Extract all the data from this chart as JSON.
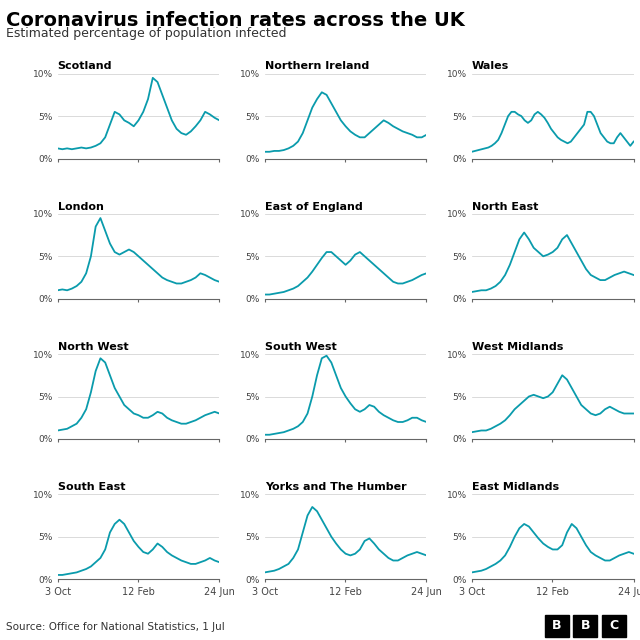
{
  "title": "Coronavirus infection rates across the UK",
  "subtitle": "Estimated percentage of population infected",
  "source": "Source: Office for National Statistics, 1 Jul",
  "line_color": "#0a9bac",
  "background_color": "#ffffff",
  "x_tick_labels": [
    "3 Oct",
    "12 Feb",
    "24 Jun"
  ],
  "y_max": 10,
  "regions": [
    "Scotland",
    "Northern Ireland",
    "Wales",
    "London",
    "East of England",
    "North East",
    "North West",
    "South West",
    "West Midlands",
    "South East",
    "Yorks and The Humber",
    "East Midlands"
  ],
  "data": {
    "Scotland": [
      1.2,
      1.1,
      1.2,
      1.1,
      1.2,
      1.3,
      1.2,
      1.3,
      1.5,
      1.8,
      2.5,
      4.0,
      5.5,
      5.2,
      4.5,
      4.2,
      3.8,
      4.5,
      5.5,
      7.0,
      9.5,
      9.0,
      7.5,
      6.0,
      4.5,
      3.5,
      3.0,
      2.8,
      3.2,
      3.8,
      4.5,
      5.5,
      5.2,
      4.8,
      4.5
    ],
    "Northern Ireland": [
      0.8,
      0.8,
      0.9,
      0.9,
      1.0,
      1.2,
      1.5,
      2.0,
      3.0,
      4.5,
      6.0,
      7.0,
      7.8,
      7.5,
      6.5,
      5.5,
      4.5,
      3.8,
      3.2,
      2.8,
      2.5,
      2.5,
      3.0,
      3.5,
      4.0,
      4.5,
      4.2,
      3.8,
      3.5,
      3.2,
      3.0,
      2.8,
      2.5,
      2.5,
      2.8
    ],
    "Wales": [
      0.8,
      0.9,
      1.0,
      1.1,
      1.2,
      1.3,
      1.5,
      1.8,
      2.2,
      3.0,
      4.0,
      5.0,
      5.5,
      5.5,
      5.2,
      5.0,
      4.5,
      4.2,
      4.5,
      5.2,
      5.5,
      5.2,
      4.8,
      4.2,
      3.5,
      3.0,
      2.5,
      2.2,
      2.0,
      1.8,
      2.0,
      2.5,
      3.0,
      3.5,
      4.0,
      5.5,
      5.5,
      5.0,
      4.0,
      3.0,
      2.5,
      2.0,
      1.8,
      1.8,
      2.5,
      3.0,
      2.5,
      2.0,
      1.5,
      2.0
    ],
    "London": [
      1.0,
      1.1,
      1.0,
      1.2,
      1.5,
      2.0,
      3.0,
      5.0,
      8.5,
      9.5,
      8.0,
      6.5,
      5.5,
      5.2,
      5.5,
      5.8,
      5.5,
      5.0,
      4.5,
      4.0,
      3.5,
      3.0,
      2.5,
      2.2,
      2.0,
      1.8,
      1.8,
      2.0,
      2.2,
      2.5,
      3.0,
      2.8,
      2.5,
      2.2,
      2.0
    ],
    "East of England": [
      0.5,
      0.5,
      0.6,
      0.7,
      0.8,
      1.0,
      1.2,
      1.5,
      2.0,
      2.5,
      3.2,
      4.0,
      4.8,
      5.5,
      5.5,
      5.0,
      4.5,
      4.0,
      4.5,
      5.2,
      5.5,
      5.0,
      4.5,
      4.0,
      3.5,
      3.0,
      2.5,
      2.0,
      1.8,
      1.8,
      2.0,
      2.2,
      2.5,
      2.8,
      3.0
    ],
    "North East": [
      0.8,
      0.9,
      1.0,
      1.0,
      1.2,
      1.5,
      2.0,
      2.8,
      4.0,
      5.5,
      7.0,
      7.8,
      7.0,
      6.0,
      5.5,
      5.0,
      5.2,
      5.5,
      6.0,
      7.0,
      7.5,
      6.5,
      5.5,
      4.5,
      3.5,
      2.8,
      2.5,
      2.2,
      2.2,
      2.5,
      2.8,
      3.0,
      3.2,
      3.0,
      2.8
    ],
    "North West": [
      1.0,
      1.1,
      1.2,
      1.5,
      1.8,
      2.5,
      3.5,
      5.5,
      8.0,
      9.5,
      9.0,
      7.5,
      6.0,
      5.0,
      4.0,
      3.5,
      3.0,
      2.8,
      2.5,
      2.5,
      2.8,
      3.2,
      3.0,
      2.5,
      2.2,
      2.0,
      1.8,
      1.8,
      2.0,
      2.2,
      2.5,
      2.8,
      3.0,
      3.2,
      3.0
    ],
    "South West": [
      0.5,
      0.5,
      0.6,
      0.7,
      0.8,
      1.0,
      1.2,
      1.5,
      2.0,
      3.0,
      5.0,
      7.5,
      9.5,
      9.8,
      9.0,
      7.5,
      6.0,
      5.0,
      4.2,
      3.5,
      3.2,
      3.5,
      4.0,
      3.8,
      3.2,
      2.8,
      2.5,
      2.2,
      2.0,
      2.0,
      2.2,
      2.5,
      2.5,
      2.2,
      2.0
    ],
    "West Midlands": [
      0.8,
      0.9,
      1.0,
      1.0,
      1.2,
      1.5,
      1.8,
      2.2,
      2.8,
      3.5,
      4.0,
      4.5,
      5.0,
      5.2,
      5.0,
      4.8,
      5.0,
      5.5,
      6.5,
      7.5,
      7.0,
      6.0,
      5.0,
      4.0,
      3.5,
      3.0,
      2.8,
      3.0,
      3.5,
      3.8,
      3.5,
      3.2,
      3.0,
      3.0,
      3.0
    ],
    "South East": [
      0.5,
      0.5,
      0.6,
      0.7,
      0.8,
      1.0,
      1.2,
      1.5,
      2.0,
      2.5,
      3.5,
      5.5,
      6.5,
      7.0,
      6.5,
      5.5,
      4.5,
      3.8,
      3.2,
      3.0,
      3.5,
      4.2,
      3.8,
      3.2,
      2.8,
      2.5,
      2.2,
      2.0,
      1.8,
      1.8,
      2.0,
      2.2,
      2.5,
      2.2,
      2.0
    ],
    "Yorks and The Humber": [
      0.8,
      0.9,
      1.0,
      1.2,
      1.5,
      1.8,
      2.5,
      3.5,
      5.5,
      7.5,
      8.5,
      8.0,
      7.0,
      6.0,
      5.0,
      4.2,
      3.5,
      3.0,
      2.8,
      3.0,
      3.5,
      4.5,
      4.8,
      4.2,
      3.5,
      3.0,
      2.5,
      2.2,
      2.2,
      2.5,
      2.8,
      3.0,
      3.2,
      3.0,
      2.8
    ],
    "East Midlands": [
      0.8,
      0.9,
      1.0,
      1.2,
      1.5,
      1.8,
      2.2,
      2.8,
      3.8,
      5.0,
      6.0,
      6.5,
      6.2,
      5.5,
      4.8,
      4.2,
      3.8,
      3.5,
      3.5,
      4.0,
      5.5,
      6.5,
      6.0,
      5.0,
      4.0,
      3.2,
      2.8,
      2.5,
      2.2,
      2.2,
      2.5,
      2.8,
      3.0,
      3.2,
      3.0
    ]
  }
}
